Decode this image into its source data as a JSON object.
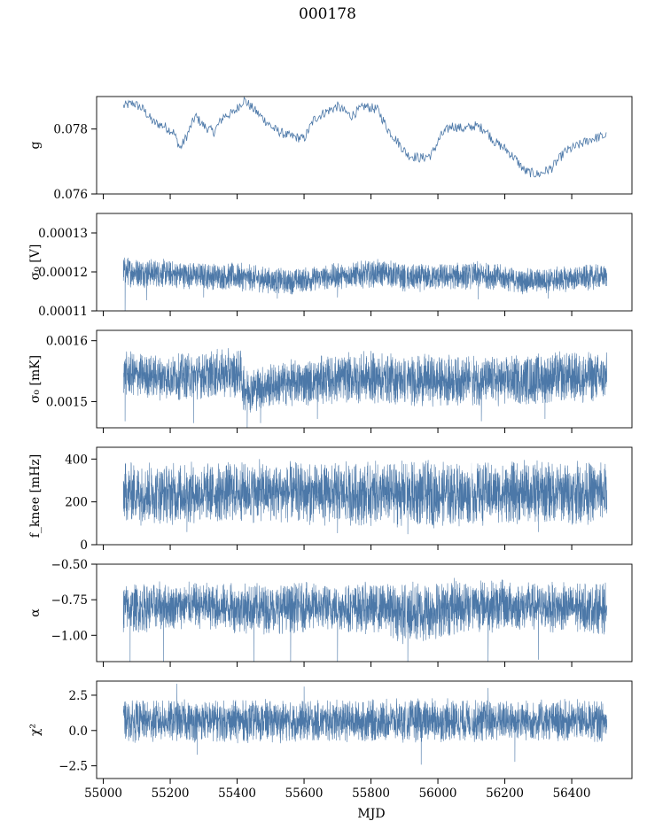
{
  "figure": {
    "title": "000178",
    "xlabel": "MJD"
  },
  "colors": {
    "series": "#4c78a8",
    "axes": "#000000",
    "background": "#ffffff"
  },
  "chart_data": [
    {
      "type": "line",
      "ylabel": "g",
      "xlim": [
        54980,
        56580
      ],
      "ylim": [
        0.076,
        0.079
      ],
      "yticks": [
        {
          "v": 0.076,
          "label": "0.076"
        },
        {
          "v": 0.078,
          "label": "0.078"
        }
      ],
      "xticks": [
        {
          "v": 55000
        },
        {
          "v": 55200
        },
        {
          "v": 55400
        },
        {
          "v": 55600
        },
        {
          "v": 55800
        },
        {
          "v": 56000
        },
        {
          "v": 56200
        },
        {
          "v": 56400
        }
      ],
      "mode": "trend",
      "trend": [
        [
          55060,
          0.0787
        ],
        [
          55090,
          0.0788
        ],
        [
          55120,
          0.0786
        ],
        [
          55150,
          0.0782
        ],
        [
          55180,
          0.0781
        ],
        [
          55210,
          0.0779
        ],
        [
          55230,
          0.0774
        ],
        [
          55250,
          0.0778
        ],
        [
          55275,
          0.0784
        ],
        [
          55300,
          0.0781
        ],
        [
          55330,
          0.0779
        ],
        [
          55360,
          0.0784
        ],
        [
          55390,
          0.0785
        ],
        [
          55420,
          0.0789
        ],
        [
          55450,
          0.0786
        ],
        [
          55480,
          0.0783
        ],
        [
          55510,
          0.078
        ],
        [
          55550,
          0.0778
        ],
        [
          55600,
          0.0777
        ],
        [
          55630,
          0.0783
        ],
        [
          55660,
          0.0785
        ],
        [
          55700,
          0.0787
        ],
        [
          55740,
          0.0784
        ],
        [
          55780,
          0.0787
        ],
        [
          55820,
          0.0786
        ],
        [
          55850,
          0.078
        ],
        [
          55880,
          0.0776
        ],
        [
          55910,
          0.0772
        ],
        [
          55950,
          0.0771
        ],
        [
          55980,
          0.0772
        ],
        [
          56010,
          0.0778
        ],
        [
          56040,
          0.0781
        ],
        [
          56080,
          0.078
        ],
        [
          56110,
          0.0781
        ],
        [
          56140,
          0.078
        ],
        [
          56170,
          0.0776
        ],
        [
          56200,
          0.0774
        ],
        [
          56230,
          0.0771
        ],
        [
          56260,
          0.0767
        ],
        [
          56300,
          0.0766
        ],
        [
          56340,
          0.0768
        ],
        [
          56380,
          0.0773
        ],
        [
          56420,
          0.0775
        ],
        [
          56460,
          0.0777
        ],
        [
          56505,
          0.0778
        ]
      ],
      "noise_amplitude": 0.00015
    },
    {
      "type": "line",
      "ylabel": "σ₀ [V]",
      "xlim": [
        54980,
        56580
      ],
      "ylim": [
        0.00011,
        0.000135
      ],
      "yticks": [
        {
          "v": 0.00011,
          "label": "0.00011"
        },
        {
          "v": 0.00012,
          "label": "0.00012"
        },
        {
          "v": 0.00013,
          "label": "0.00013"
        }
      ],
      "xticks": [
        {
          "v": 55000
        },
        {
          "v": 55200
        },
        {
          "v": 55400
        },
        {
          "v": 55600
        },
        {
          "v": 55800
        },
        {
          "v": 56000
        },
        {
          "v": 56200
        },
        {
          "v": 56400
        }
      ],
      "mode": "band",
      "band": [
        [
          55060,
          0.000116,
          0.0001245
        ],
        [
          55250,
          0.0001155,
          0.000123
        ],
        [
          55400,
          0.000115,
          0.0001225
        ],
        [
          55550,
          0.000114,
          0.000121
        ],
        [
          55700,
          0.0001155,
          0.0001225
        ],
        [
          55850,
          0.000116,
          0.0001235
        ],
        [
          55910,
          0.0001145,
          0.000122
        ],
        [
          56000,
          0.000115,
          0.0001225
        ],
        [
          56150,
          0.0001155,
          0.0001228
        ],
        [
          56250,
          0.0001142,
          0.000121
        ],
        [
          56350,
          0.0001145,
          0.0001215
        ],
        [
          56505,
          0.0001155,
          0.0001222
        ]
      ],
      "spikes_down": [
        [
          55065,
          0.00011
        ],
        [
          55130,
          0.0001128
        ],
        [
          55300,
          0.0001135
        ],
        [
          55520,
          0.0001132
        ],
        [
          55700,
          0.0001135
        ],
        [
          56120,
          0.000113
        ],
        [
          56330,
          0.0001132
        ]
      ],
      "gaps": [
        55905,
        56100
      ]
    },
    {
      "type": "line",
      "ylabel": "σ₀ [mK]",
      "xlim": [
        54980,
        56580
      ],
      "ylim": [
        0.001457,
        0.001617
      ],
      "yticks": [
        {
          "v": 0.0015,
          "label": "0.0015"
        },
        {
          "v": 0.0016,
          "label": "0.0016"
        }
      ],
      "xticks": [
        {
          "v": 55000
        },
        {
          "v": 55200
        },
        {
          "v": 55400
        },
        {
          "v": 55600
        },
        {
          "v": 55800
        },
        {
          "v": 56000
        },
        {
          "v": 56200
        },
        {
          "v": 56400
        }
      ],
      "mode": "band",
      "band": [
        [
          55060,
          0.001505,
          0.001585
        ],
        [
          55200,
          0.0015,
          0.00158
        ],
        [
          55410,
          0.001505,
          0.00159
        ],
        [
          55420,
          0.00148,
          0.00156
        ],
        [
          55550,
          0.00149,
          0.00157
        ],
        [
          55700,
          0.001495,
          0.00158
        ],
        [
          55800,
          0.001495,
          0.001585
        ],
        [
          55910,
          0.00149,
          0.00158
        ],
        [
          56050,
          0.001492,
          0.001578
        ],
        [
          56200,
          0.00149,
          0.001578
        ],
        [
          56350,
          0.001495,
          0.001585
        ],
        [
          56505,
          0.001495,
          0.001585
        ]
      ],
      "spikes_down": [
        [
          55065,
          0.001468
        ],
        [
          55270,
          0.001465
        ],
        [
          55430,
          0.001457
        ],
        [
          55470,
          0.001465
        ],
        [
          55640,
          0.001472
        ],
        [
          56130,
          0.001468
        ],
        [
          56320,
          0.001472
        ]
      ],
      "gaps": [
        55905,
        56100
      ]
    },
    {
      "type": "line",
      "ylabel": "f_knee [mHz]",
      "xlim": [
        54980,
        56580
      ],
      "ylim": [
        0,
        455
      ],
      "yticks": [
        {
          "v": 0,
          "label": "0"
        },
        {
          "v": 200,
          "label": "200"
        },
        {
          "v": 400,
          "label": "400"
        }
      ],
      "xticks": [
        {
          "v": 55000
        },
        {
          "v": 55200
        },
        {
          "v": 55400
        },
        {
          "v": 55600
        },
        {
          "v": 55800
        },
        {
          "v": 56000
        },
        {
          "v": 56200
        },
        {
          "v": 56400
        }
      ],
      "mode": "band",
      "band": [
        [
          55060,
          90,
          400
        ],
        [
          55250,
          85,
          395
        ],
        [
          55450,
          95,
          400
        ],
        [
          55650,
          85,
          390
        ],
        [
          55850,
          80,
          395
        ],
        [
          55910,
          70,
          400
        ],
        [
          56100,
          85,
          395
        ],
        [
          56300,
          90,
          400
        ],
        [
          56505,
          90,
          400
        ]
      ],
      "spikes_down": [
        [
          55250,
          60
        ],
        [
          55700,
          55
        ],
        [
          55910,
          50
        ],
        [
          56300,
          60
        ]
      ],
      "gaps": [
        55905,
        56100
      ]
    },
    {
      "type": "line",
      "ylabel": "α",
      "xlim": [
        54980,
        56580
      ],
      "ylim": [
        -1.185,
        -0.5
      ],
      "yticks": [
        {
          "v": -1.0,
          "label": "−1.00"
        },
        {
          "v": -0.75,
          "label": "−0.75"
        },
        {
          "v": -0.5,
          "label": "−0.50"
        }
      ],
      "xticks": [
        {
          "v": 55000
        },
        {
          "v": 55200
        },
        {
          "v": 55400
        },
        {
          "v": 55600
        },
        {
          "v": 55800
        },
        {
          "v": 56000
        },
        {
          "v": 56200
        },
        {
          "v": 56400
        }
      ],
      "mode": "band",
      "band": [
        [
          55060,
          -1.0,
          -0.62
        ],
        [
          55250,
          -0.96,
          -0.62
        ],
        [
          55450,
          -1.0,
          -0.62
        ],
        [
          55650,
          -0.98,
          -0.62
        ],
        [
          55850,
          -1.0,
          -0.62
        ],
        [
          55910,
          -1.1,
          -0.6
        ],
        [
          56100,
          -0.98,
          -0.58
        ],
        [
          56300,
          -0.98,
          -0.62
        ],
        [
          56505,
          -1.0,
          -0.62
        ]
      ],
      "spikes_down": [
        [
          55080,
          -1.185
        ],
        [
          55180,
          -1.185
        ],
        [
          55450,
          -1.185
        ],
        [
          55560,
          -1.185
        ],
        [
          55700,
          -1.185
        ],
        [
          55910,
          -1.185
        ],
        [
          56150,
          -1.185
        ],
        [
          56300,
          -1.17
        ]
      ],
      "gaps": [
        55905,
        56100
      ]
    },
    {
      "type": "line",
      "ylabel": "χ²",
      "xlim": [
        54980,
        56580
      ],
      "ylim": [
        -3.4,
        3.5
      ],
      "yticks": [
        {
          "v": -2.5,
          "label": "−2.5"
        },
        {
          "v": 0.0,
          "label": "0.0"
        },
        {
          "v": 2.5,
          "label": "2.5"
        }
      ],
      "xticks": [
        {
          "v": 55000,
          "label": "55000"
        },
        {
          "v": 55200,
          "label": "55200"
        },
        {
          "v": 55400,
          "label": "55400"
        },
        {
          "v": 55600,
          "label": "55600"
        },
        {
          "v": 55800,
          "label": "55800"
        },
        {
          "v": 56000,
          "label": "56000"
        },
        {
          "v": 56200,
          "label": "56200"
        },
        {
          "v": 56400,
          "label": "56400"
        }
      ],
      "mode": "band",
      "band": [
        [
          55060,
          -0.9,
          2.2
        ],
        [
          55300,
          -0.9,
          2.3
        ],
        [
          55600,
          -0.9,
          2.2
        ],
        [
          55900,
          -0.9,
          2.3
        ],
        [
          56200,
          -0.9,
          2.3
        ],
        [
          56505,
          -0.9,
          2.2
        ]
      ],
      "spikes_down": [
        [
          55280,
          -1.7
        ],
        [
          55950,
          -2.4
        ],
        [
          56230,
          -2.2
        ]
      ],
      "spikes_up": [
        [
          55220,
          3.3
        ],
        [
          55600,
          3.1
        ],
        [
          56150,
          3.0
        ]
      ],
      "gaps": [
        55905,
        56100
      ]
    }
  ]
}
